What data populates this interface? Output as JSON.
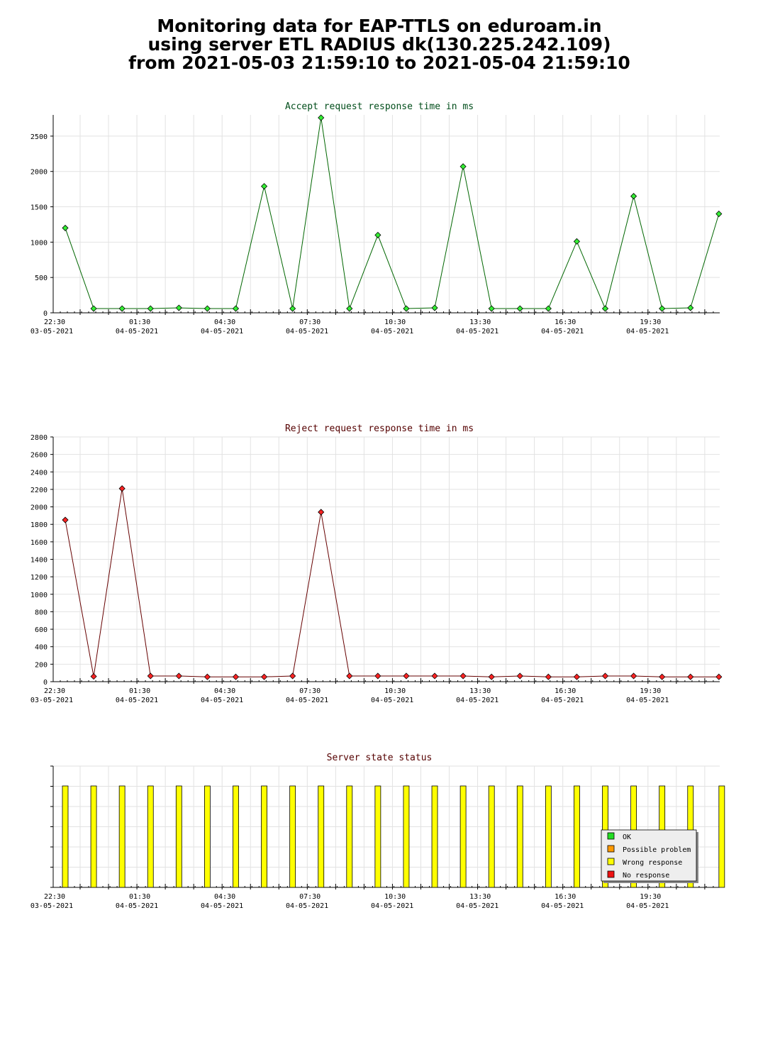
{
  "page": {
    "title_lines": [
      "Monitoring data for EAP-TTLS on eduroam.in",
      "using server ETL RADIUS dk(130.225.242.109)",
      "from 2021-05-03 21:59:10 to 2021-05-04 21:59:10"
    ]
  },
  "colors": {
    "accept_line": "#006600",
    "accept_marker": "#33ee33",
    "reject_line": "#660000",
    "reject_marker": "#ff2222",
    "status_bar": "#ffff00",
    "title_accept": "#004d1a",
    "title_reject": "#550000",
    "legend_ok": "#22dd22",
    "legend_possible": "#ff9900",
    "legend_wrong": "#ffff00",
    "legend_none": "#ee1111"
  },
  "chart_data": [
    {
      "type": "line",
      "title": "Accept request response time in ms",
      "x_tick_labels": [
        [
          "22:30",
          "03-05-2021"
        ],
        [
          "01:30",
          "04-05-2021"
        ],
        [
          "04:30",
          "04-05-2021"
        ],
        [
          "07:30",
          "04-05-2021"
        ],
        [
          "10:30",
          "04-05-2021"
        ],
        [
          "13:30",
          "04-05-2021"
        ],
        [
          "16:30",
          "04-05-2021"
        ],
        [
          "19:30",
          "04-05-2021"
        ]
      ],
      "x": [
        "22:00",
        "23:00",
        "00:00",
        "01:00",
        "02:00",
        "03:00",
        "04:00",
        "05:00",
        "06:00",
        "07:00",
        "08:00",
        "09:00",
        "10:00",
        "11:00",
        "12:00",
        "13:00",
        "14:00",
        "15:00",
        "16:00",
        "17:00",
        "18:00",
        "19:00",
        "20:00",
        "21:00"
      ],
      "y_ticks": [
        0,
        500,
        1000,
        1500,
        2000,
        2500
      ],
      "ylim": [
        0,
        2800
      ],
      "grid": true,
      "series": [
        {
          "values": [
            1200,
            60,
            60,
            60,
            70,
            60,
            60,
            1790,
            60,
            2760,
            60,
            1100,
            60,
            70,
            2070,
            60,
            60,
            60,
            1010,
            60,
            1650,
            60,
            70,
            1400
          ]
        }
      ]
    },
    {
      "type": "line",
      "title": "Reject request response time in ms",
      "x_tick_labels": [
        [
          "22:30",
          "03-05-2021"
        ],
        [
          "01:30",
          "04-05-2021"
        ],
        [
          "04:30",
          "04-05-2021"
        ],
        [
          "07:30",
          "04-05-2021"
        ],
        [
          "10:30",
          "04-05-2021"
        ],
        [
          "13:30",
          "04-05-2021"
        ],
        [
          "16:30",
          "04-05-2021"
        ],
        [
          "19:30",
          "04-05-2021"
        ]
      ],
      "x": [
        "22:00",
        "23:00",
        "00:00",
        "01:00",
        "02:00",
        "03:00",
        "04:00",
        "05:00",
        "06:00",
        "07:00",
        "08:00",
        "09:00",
        "10:00",
        "11:00",
        "12:00",
        "13:00",
        "14:00",
        "15:00",
        "16:00",
        "17:00",
        "18:00",
        "19:00",
        "20:00",
        "21:00"
      ],
      "y_ticks": [
        0,
        200,
        400,
        600,
        800,
        1000,
        1200,
        1400,
        1600,
        1800,
        2000,
        2200,
        2400,
        2600,
        2800
      ],
      "ylim": [
        0,
        2800
      ],
      "grid": true,
      "series": [
        {
          "values": [
            1850,
            60,
            2210,
            65,
            65,
            55,
            55,
            55,
            65,
            1940,
            65,
            65,
            65,
            65,
            65,
            55,
            65,
            55,
            55,
            65,
            65,
            55,
            55,
            55
          ]
        }
      ]
    },
    {
      "type": "bar",
      "title": "Server state status",
      "x_tick_labels": [
        [
          "22:30",
          "03-05-2021"
        ],
        [
          "01:30",
          "04-05-2021"
        ],
        [
          "04:30",
          "04-05-2021"
        ],
        [
          "07:30",
          "04-05-2021"
        ],
        [
          "10:30",
          "04-05-2021"
        ],
        [
          "13:30",
          "04-05-2021"
        ],
        [
          "16:30",
          "04-05-2021"
        ],
        [
          "19:30",
          "04-05-2021"
        ]
      ],
      "x": [
        "22:00",
        "23:00",
        "00:00",
        "01:00",
        "02:00",
        "03:00",
        "04:00",
        "05:00",
        "06:00",
        "07:00",
        "08:00",
        "09:00",
        "10:00",
        "11:00",
        "12:00",
        "13:00",
        "14:00",
        "15:00",
        "16:00",
        "17:00",
        "18:00",
        "19:00",
        "20:00",
        "21:00"
      ],
      "status": [
        "Wrong response",
        "Wrong response",
        "Wrong response",
        "Wrong response",
        "Wrong response",
        "Wrong response",
        "Wrong response",
        "Wrong response",
        "Wrong response",
        "Wrong response",
        "Wrong response",
        "Wrong response",
        "Wrong response",
        "Wrong response",
        "Wrong response",
        "Wrong response",
        "Wrong response",
        "Wrong response",
        "Wrong response",
        "Wrong response",
        "Wrong response",
        "Wrong response",
        "Wrong response",
        "Wrong response"
      ],
      "legend": [
        "OK",
        "Possible problem",
        "Wrong response",
        "No response"
      ],
      "legend_position": "bottom-right",
      "grid": true
    }
  ]
}
